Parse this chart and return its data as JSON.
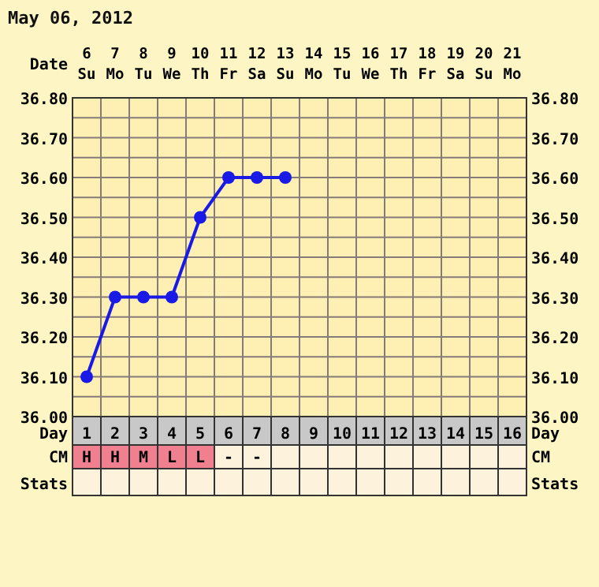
{
  "chart_data": {
    "type": "line",
    "title": "May 06, 2012",
    "xlabel": "Date",
    "categories": [
      "6\nSu",
      "7\nMo",
      "8\nTu",
      "9\nWe",
      "10\nTh",
      "11\nFr",
      "12\nSa",
      "13\nSu",
      "14\nMo",
      "15\nTu",
      "16\nWe",
      "17\nTh",
      "18\nFr",
      "19\nSa",
      "20\nSu",
      "21\nMo"
    ],
    "series": [
      {
        "color": "#1a1ae6",
        "values": [
          36.1,
          36.3,
          36.3,
          36.3,
          36.5,
          36.6,
          36.6,
          36.6,
          null,
          null,
          null,
          null,
          null,
          null,
          null,
          null
        ]
      }
    ],
    "ylim": [
      36.0,
      36.8
    ],
    "yticks": [
      {
        "value": 36.0,
        "label": "36.00"
      },
      {
        "value": 36.1,
        "label": "36.10"
      },
      {
        "value": 36.2,
        "label": "36.20"
      },
      {
        "value": 36.3,
        "label": "36.30"
      },
      {
        "value": 36.4,
        "label": "36.40"
      },
      {
        "value": 36.5,
        "label": "36.50"
      },
      {
        "value": 36.6,
        "label": "36.60"
      },
      {
        "value": 36.7,
        "label": "36.70"
      },
      {
        "value": 36.8,
        "label": "36.80"
      }
    ],
    "y2lim": [
      36.0,
      36.8
    ],
    "y2ticks": [
      {
        "value": 36.0,
        "label": "36.00"
      },
      {
        "value": 36.1,
        "label": "36.10"
      },
      {
        "value": 36.2,
        "label": "36.20"
      },
      {
        "value": 36.3,
        "label": "36.30"
      },
      {
        "value": 36.4,
        "label": "36.40"
      },
      {
        "value": 36.5,
        "label": "36.50"
      },
      {
        "value": 36.6,
        "label": "36.60"
      },
      {
        "value": 36.7,
        "label": "36.70"
      },
      {
        "value": 36.8,
        "label": "36.80"
      }
    ],
    "x2label": "Day",
    "x2lim": [
      0.5,
      16.5
    ],
    "x2ticks": [
      1,
      2,
      3,
      4,
      5,
      6,
      7,
      8,
      9,
      10,
      11,
      12,
      13,
      14,
      15,
      16
    ],
    "grid": true,
    "marker": "circle",
    "line_style": "solid",
    "annotations": [
      "CM",
      "Stats",
      "H",
      "H",
      "M",
      "L",
      "L",
      "-",
      "-"
    ]
  }
}
